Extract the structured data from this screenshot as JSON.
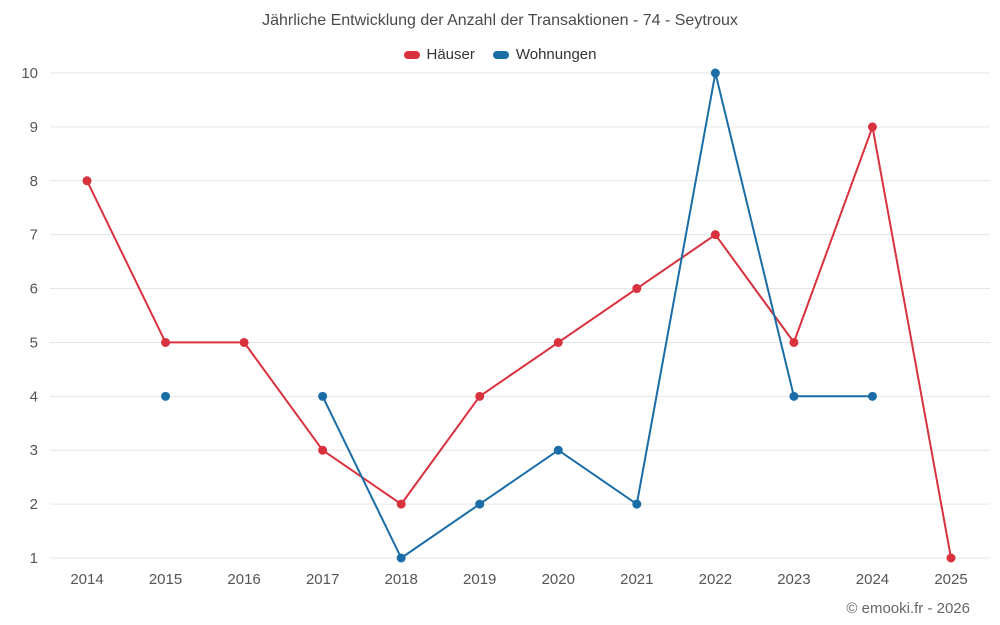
{
  "title": "Jährliche Entwicklung der Anzahl der Transaktionen - 74 - Seytroux",
  "footer": "© emooki.fr - 2026",
  "colors": {
    "grid": "#e6e6e6",
    "axis_text": "#555555",
    "title_text": "#4a4a4a",
    "footer_text": "#666666",
    "hauser": "#d8323e",
    "wohnungen": "#1a6da6"
  },
  "chart_data": {
    "type": "line",
    "title": "Jährliche Entwicklung der Anzahl der Transaktionen - 74 - Seytroux",
    "categories": [
      "2014",
      "2015",
      "2016",
      "2017",
      "2018",
      "2019",
      "2020",
      "2021",
      "2022",
      "2023",
      "2024",
      "2025"
    ],
    "series": [
      {
        "name": "Häuser",
        "color": "#d8323e",
        "values": [
          8,
          5,
          5,
          3,
          2,
          4,
          5,
          6,
          7,
          5,
          9,
          1
        ]
      },
      {
        "name": "Wohnungen",
        "color": "#1a6da6",
        "values": [
          null,
          4,
          null,
          4,
          1,
          2,
          3,
          2,
          10,
          4,
          4,
          null
        ]
      }
    ],
    "xlabel": "",
    "ylabel": "",
    "ylim": [
      1,
      10
    ],
    "yticks": [
      1,
      2,
      3,
      4,
      5,
      6,
      7,
      8,
      9,
      10
    ],
    "grid": true,
    "legend_position": "top"
  }
}
